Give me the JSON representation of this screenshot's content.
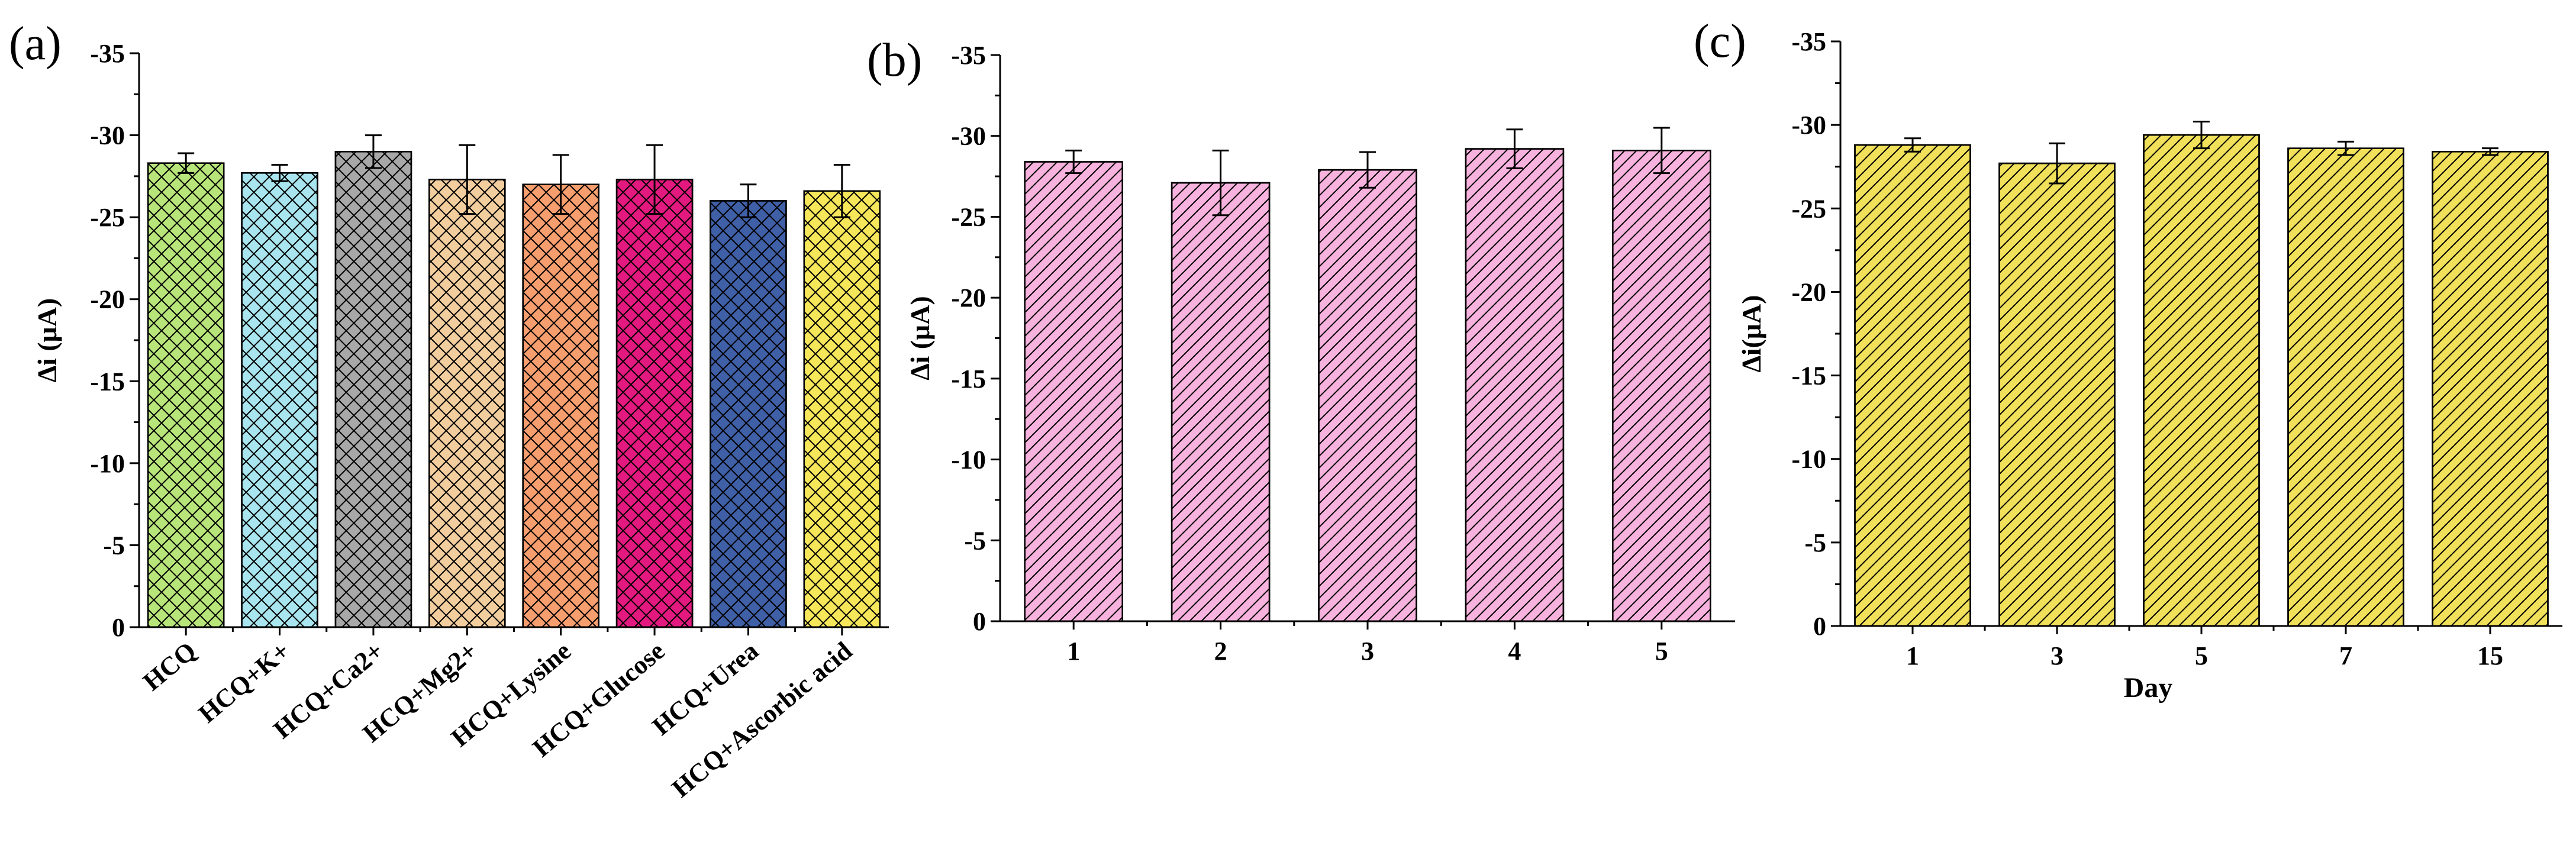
{
  "chart_data": [
    {
      "type": "bar",
      "panel_label": "(a)",
      "ylabel": "∆i (μA)",
      "xlabel": "",
      "ylim": [
        0,
        -35
      ],
      "yticks": [
        "0",
        "-5",
        "-10",
        "-15",
        "-20",
        "-25",
        "-30",
        "-35"
      ],
      "categories": [
        "HCQ",
        "HCQ+K+",
        "HCQ+Ca2+",
        "HCQ+Mg2+",
        "HCQ+Lysine",
        "HCQ+Glucose",
        "HCQ+Urea",
        "HCQ+Ascorbic acid"
      ],
      "values": [
        -28.3,
        -27.7,
        -29.0,
        -27.3,
        -27.0,
        -27.3,
        -26.0,
        -26.6
      ],
      "errors": [
        0.6,
        0.5,
        1.0,
        2.1,
        1.8,
        2.1,
        1.0,
        1.6
      ],
      "colors": [
        "#b7e57a",
        "#a9e5ee",
        "#a8a8a8",
        "#f2ce9e",
        "#f79e6e",
        "#e4197f",
        "#3f5fa6",
        "#f5e65a"
      ],
      "hatch": "crosshatch"
    },
    {
      "type": "bar",
      "panel_label": "(b)",
      "ylabel": "∆i (μA)",
      "xlabel": "",
      "ylim": [
        0,
        -35
      ],
      "yticks": [
        "0",
        "-5",
        "-10",
        "-15",
        "-20",
        "-25",
        "-30",
        "-35"
      ],
      "categories": [
        "1",
        "2",
        "3",
        "4",
        "5"
      ],
      "values": [
        -28.4,
        -27.1,
        -27.9,
        -29.2,
        -29.1
      ],
      "errors": [
        0.7,
        2.0,
        1.1,
        1.2,
        1.4
      ],
      "colors": [
        "#f7b2dd",
        "#f7b2dd",
        "#f7b2dd",
        "#f7b2dd",
        "#f7b2dd"
      ],
      "hatch": "diagonal"
    },
    {
      "type": "bar",
      "panel_label": "(c)",
      "ylabel": "∆i(μA)",
      "xlabel": "Day",
      "ylim": [
        0,
        -35
      ],
      "yticks": [
        "0",
        "-5",
        "-10",
        "-15",
        "-20",
        "-25",
        "-30",
        "-35"
      ],
      "categories": [
        "1",
        "3",
        "5",
        "7",
        "15"
      ],
      "values": [
        -28.8,
        -27.7,
        -29.4,
        -28.6,
        -28.4
      ],
      "errors": [
        0.4,
        1.2,
        0.8,
        0.4,
        0.2
      ],
      "colors": [
        "#f1e05a",
        "#f1e05a",
        "#f1e05a",
        "#f1e05a",
        "#f1e05a"
      ],
      "hatch": "diagonal"
    }
  ]
}
